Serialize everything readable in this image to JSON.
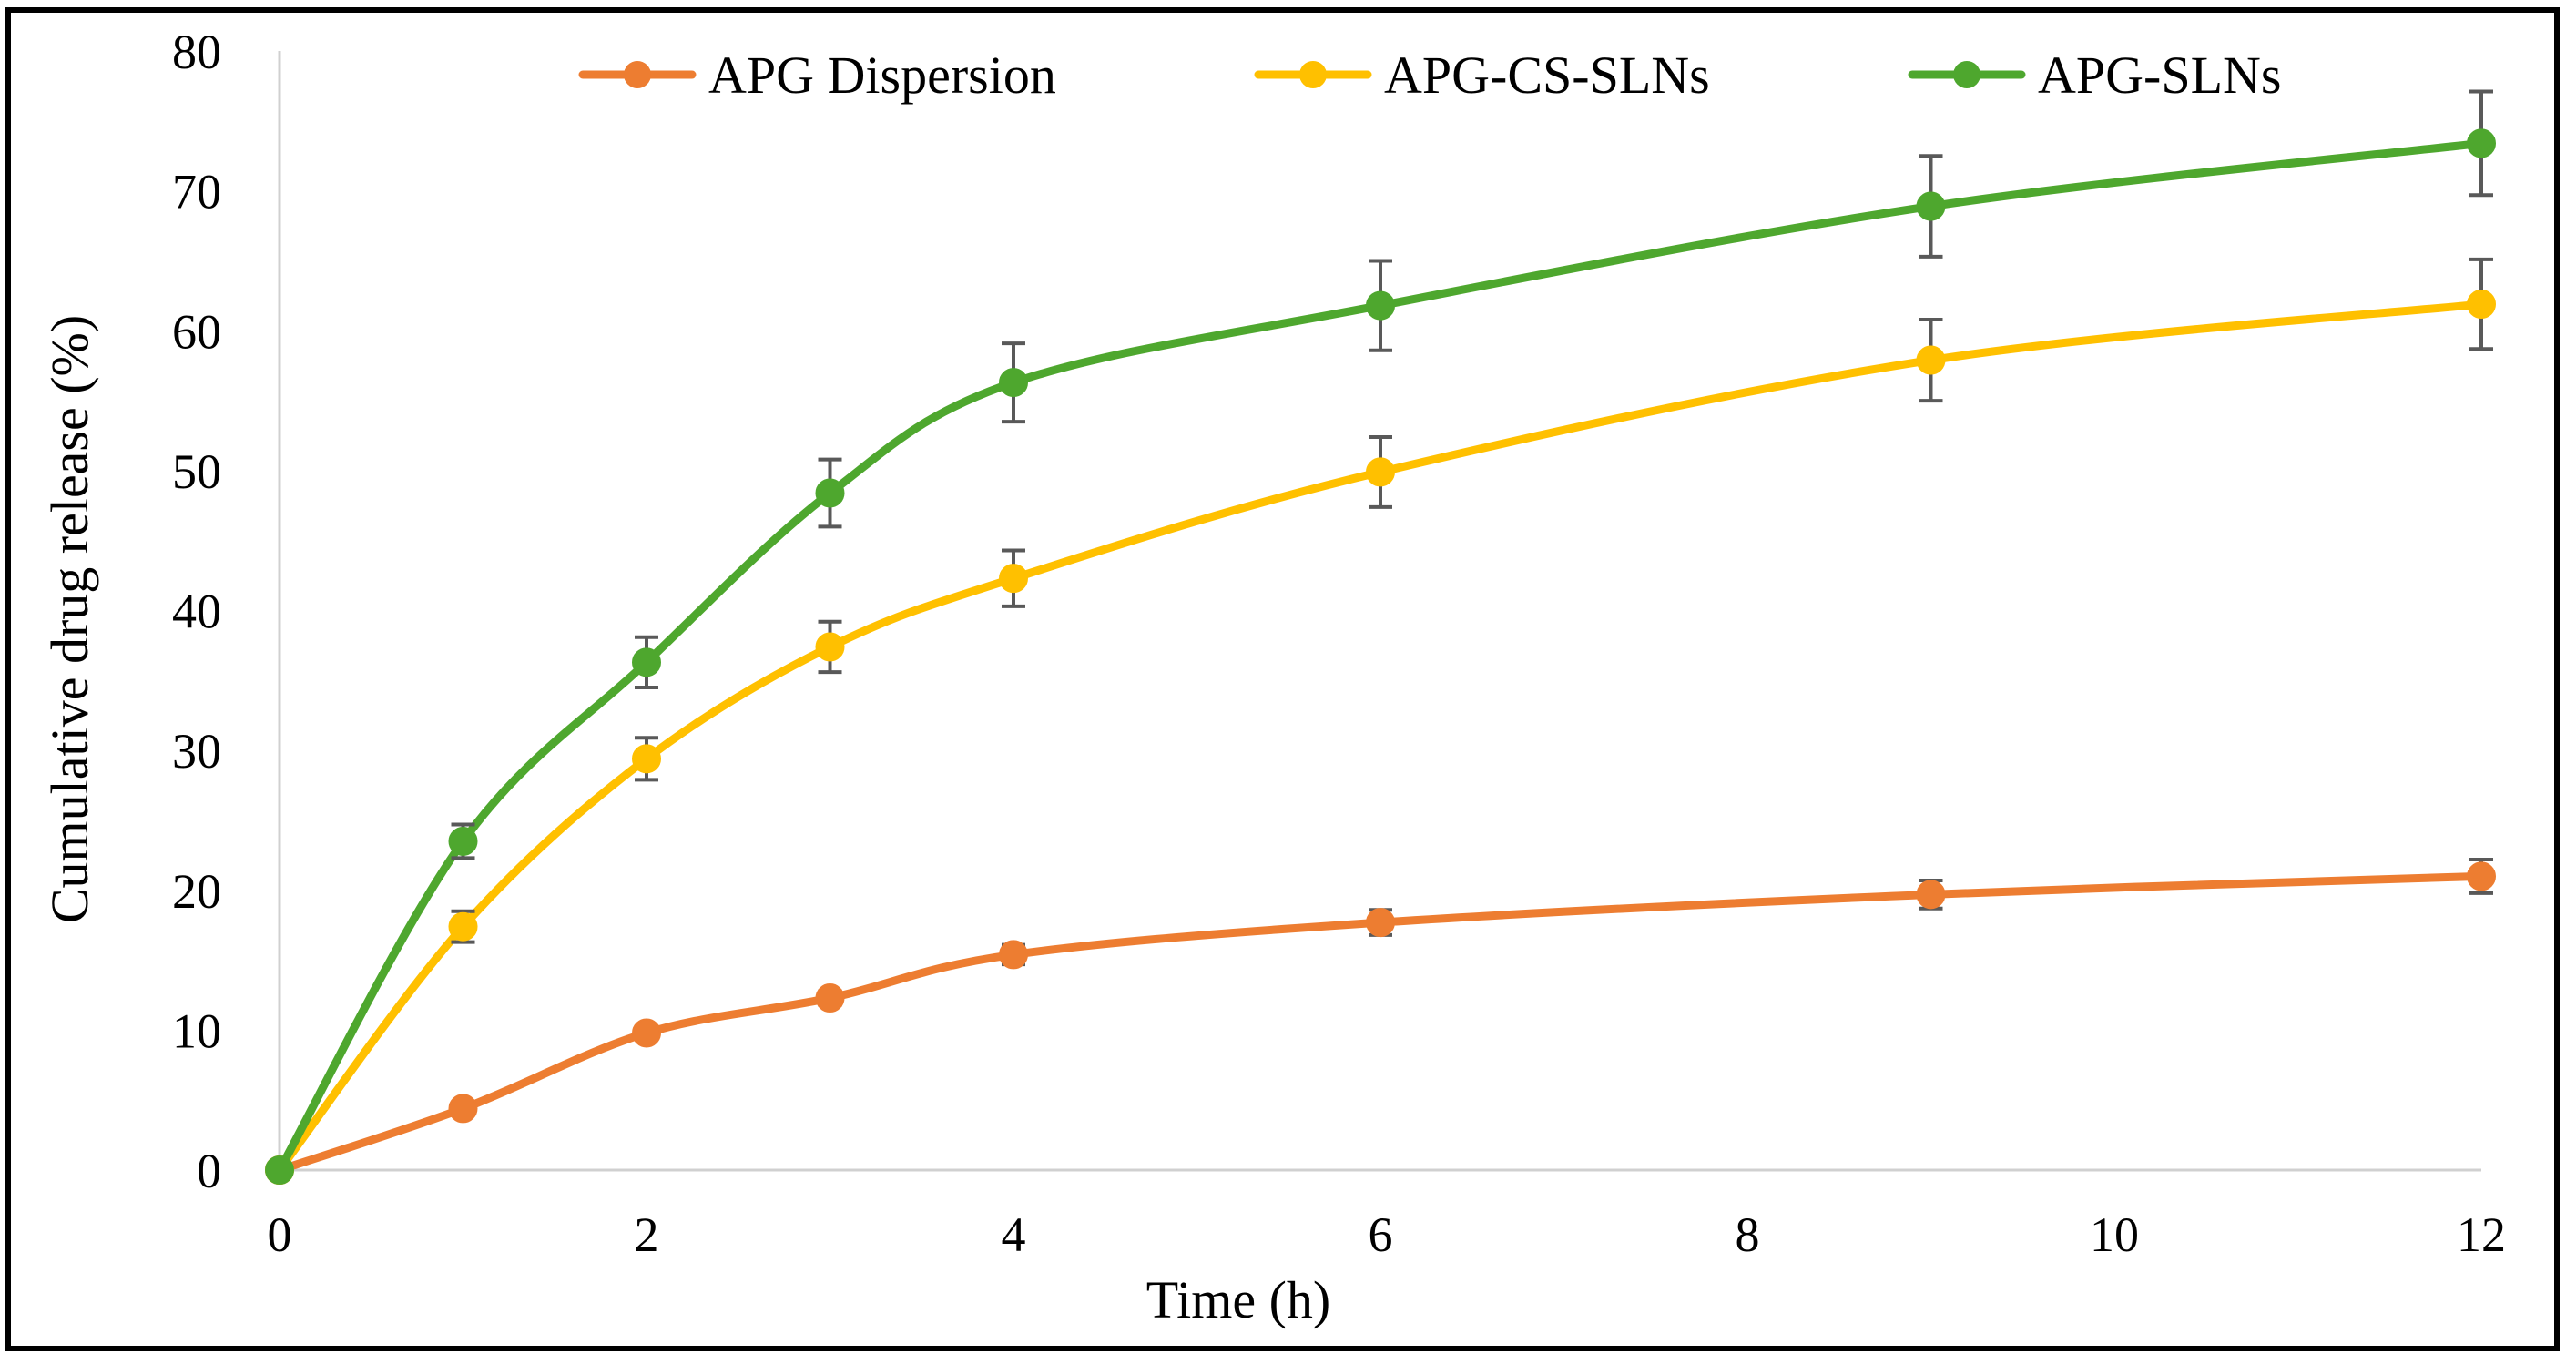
{
  "chart_data": {
    "type": "line",
    "title": "",
    "xlabel": "Time  (h)",
    "ylabel": "Cumulative  drug release (%)",
    "xlim": [
      0,
      12
    ],
    "ylim": [
      0,
      80
    ],
    "xticks": [
      0,
      2,
      4,
      6,
      8,
      10,
      12
    ],
    "yticks": [
      0,
      10,
      20,
      30,
      40,
      50,
      60,
      70,
      80
    ],
    "grid": false,
    "legend_position": "top",
    "x": [
      0,
      1,
      2,
      3,
      4,
      6,
      9,
      12
    ],
    "series": [
      {
        "name": "APG Dispersion",
        "color": "#ED7D31",
        "values": [
          0,
          4.4,
          9.8,
          12.3,
          15.4,
          17.7,
          19.7,
          21.0
        ],
        "errors": [
          0,
          0,
          0,
          0.5,
          0.7,
          0.9,
          1.0,
          1.2
        ]
      },
      {
        "name": "APG-CS-SLNs",
        "color": "#FFC000",
        "values": [
          0,
          17.4,
          29.4,
          37.4,
          42.3,
          49.9,
          57.9,
          61.9
        ],
        "errors": [
          0,
          1.1,
          1.5,
          1.8,
          2.0,
          2.5,
          2.9,
          3.2
        ]
      },
      {
        "name": "APG-SLNs",
        "color": "#4EA72E",
        "values": [
          0,
          23.5,
          36.3,
          48.4,
          56.3,
          61.8,
          68.9,
          73.4
        ],
        "errors": [
          0,
          1.2,
          1.8,
          2.4,
          2.8,
          3.2,
          3.6,
          3.7
        ]
      }
    ]
  }
}
